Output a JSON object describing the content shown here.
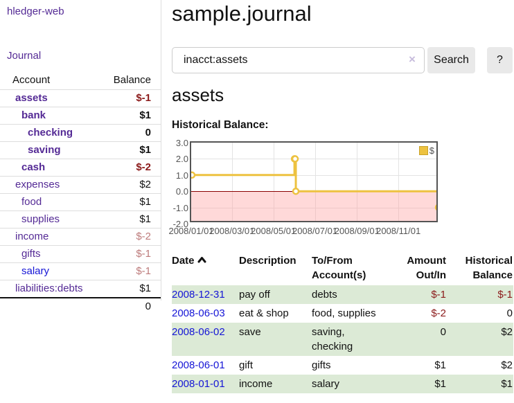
{
  "app": {
    "brand": "hledger-web",
    "nav": {
      "journal": "Journal"
    }
  },
  "sidebar": {
    "header": {
      "account": "Account",
      "balance": "Balance"
    },
    "accounts": [
      {
        "name": "assets",
        "balance": "$-1"
      },
      {
        "name": "bank",
        "balance": "$1"
      },
      {
        "name": "checking",
        "balance": "0"
      },
      {
        "name": "saving",
        "balance": "$1"
      },
      {
        "name": "cash",
        "balance": "$-2"
      },
      {
        "name": "expenses",
        "balance": "$2"
      },
      {
        "name": "food",
        "balance": "$1"
      },
      {
        "name": "supplies",
        "balance": "$1"
      },
      {
        "name": "income",
        "balance": "$-2"
      },
      {
        "name": "gifts",
        "balance": "$-1"
      },
      {
        "name": "salary",
        "balance": "$-1"
      },
      {
        "name": "liabilities:debts",
        "balance": "$1"
      }
    ],
    "total": "0"
  },
  "main": {
    "title": "sample.journal",
    "search": {
      "value": "inacct:assets",
      "clear_icon": "×",
      "search_button": "Search",
      "help_button": "?"
    },
    "account_heading": "assets",
    "chart_heading": "Historical Balance:"
  },
  "chart_data": {
    "type": "line",
    "step": true,
    "title": "Historical Balance",
    "series": [
      {
        "name": "$",
        "color": "#edc240",
        "points": [
          [
            "2008-01-01",
            1
          ],
          [
            "2008-06-01",
            2
          ],
          [
            "2008-06-02",
            2
          ],
          [
            "2008-06-03",
            0
          ],
          [
            "2008-12-31",
            -1
          ]
        ]
      }
    ],
    "xlim": [
      "2008-01-01",
      "2008-12-31"
    ],
    "ylim": [
      -2,
      3
    ],
    "x_ticks": [
      "2008/01/01",
      "2008/03/01",
      "2008/05/01",
      "2008/07/01",
      "2008/09/01",
      "2008/11/01"
    ],
    "y_ticks": [
      "3.0",
      "2.0",
      "1.0",
      "0.0",
      "-1.0",
      "-2.0"
    ],
    "legend": {
      "position": "top-right",
      "label": "$"
    },
    "grid": true,
    "negative_region_fill": "#ffd9d9",
    "zero_line_color": "#8b0000"
  },
  "transactions": {
    "headers": {
      "date": "Date",
      "description": "Description",
      "accounts": "To/From\nAccount(s)",
      "amount": "Amount\nOut/In",
      "balance": "Historical\nBalance"
    },
    "rows": [
      {
        "date": "2008-12-31",
        "description": "pay off",
        "accounts": "debts",
        "amount": "$-1",
        "balance": "$-1"
      },
      {
        "date": "2008-06-03",
        "description": "eat & shop",
        "accounts": "food, supplies",
        "amount": "$-2",
        "balance": "0"
      },
      {
        "date": "2008-06-02",
        "description": "save",
        "accounts": "saving,\nchecking",
        "amount": "0",
        "balance": "$2"
      },
      {
        "date": "2008-06-01",
        "description": "gift",
        "accounts": "gifts",
        "amount": "$1",
        "balance": "$2"
      },
      {
        "date": "2008-01-01",
        "description": "income",
        "accounts": "salary",
        "amount": "$1",
        "balance": "$1"
      }
    ]
  },
  "colors": {
    "link_purple": "#542a95",
    "link_blue": "#1515d6",
    "negative_dark": "#8b1a1a",
    "negative_light": "#bd7b7b",
    "row_green": "#dcead6",
    "chart_line": "#edc240"
  }
}
